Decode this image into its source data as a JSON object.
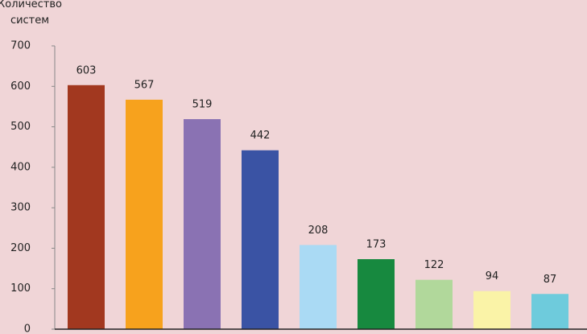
{
  "chart_data": {
    "type": "bar",
    "ylabel": "Количество систем",
    "categories": [
      null,
      null,
      null,
      null,
      null,
      null,
      null,
      null,
      null
    ],
    "values": [
      603,
      567,
      519,
      442,
      208,
      173,
      122,
      94,
      87
    ],
    "colors": [
      "#a2381f",
      "#f7a21d",
      "#8a72b3",
      "#3a53a4",
      "#aadaf4",
      "#17893f",
      "#b1d89b",
      "#faf3a7",
      "#6ecbdc"
    ],
    "ylim": [
      0,
      700
    ],
    "yticks": [
      0,
      100,
      200,
      300,
      400,
      500,
      600,
      700
    ],
    "grid": false
  }
}
